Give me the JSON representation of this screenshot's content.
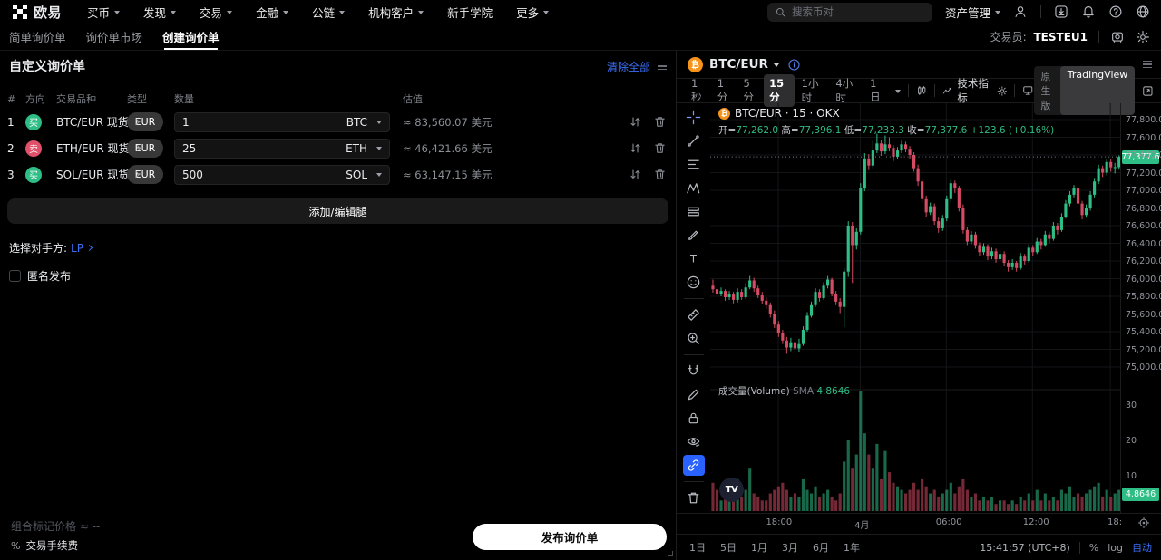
{
  "colors": {
    "accent": "#3a6ff7",
    "up": "#2ebd85",
    "down": "#d64b64",
    "badge_green": "#2ebd85",
    "btc_orange": "#f7931a"
  },
  "topnav": {
    "logo_text": "欧易",
    "menus": [
      {
        "label": "买币",
        "caret": true
      },
      {
        "label": "发现",
        "caret": true
      },
      {
        "label": "交易",
        "caret": true
      },
      {
        "label": "金融",
        "caret": true
      },
      {
        "label": "公链",
        "caret": true
      },
      {
        "label": "机构客户",
        "caret": true
      },
      {
        "label": "新手学院",
        "caret": false
      },
      {
        "label": "更多",
        "caret": true
      }
    ],
    "search_placeholder": "搜索币对",
    "assets_label": "资产管理"
  },
  "subnav": {
    "tabs": [
      {
        "label": "简单询价单",
        "active": false
      },
      {
        "label": "询价单市场",
        "active": false
      },
      {
        "label": "创建询价单",
        "active": true
      }
    ],
    "trader_label": "交易员:",
    "trader_value": "TESTEU1"
  },
  "rfq": {
    "title": "自定义询价单",
    "clear_all": "清除全部",
    "columns": {
      "index": "#",
      "direction": "方向",
      "instrument": "交易品种",
      "type": "类型",
      "amount": "数量",
      "value": "估值"
    },
    "rows": [
      {
        "index": "1",
        "side": "买",
        "side_key": "buy",
        "pair": "BTC/EUR 现货",
        "type": "EUR",
        "amount": "1",
        "ccy": "BTC",
        "value": "≈ 83,560.07 美元"
      },
      {
        "index": "2",
        "side": "卖",
        "side_key": "sell",
        "pair": "ETH/EUR 现货",
        "type": "EUR",
        "amount": "25",
        "ccy": "ETH",
        "value": "≈ 46,421.66 美元"
      },
      {
        "index": "3",
        "side": "买",
        "side_key": "buy",
        "pair": "SOL/EUR 现货",
        "type": "EUR",
        "amount": "500",
        "ccy": "SOL",
        "value": "≈ 63,147.15 美元"
      }
    ],
    "add_edit_legs": "添加/编辑腿",
    "counterparty_label": "选择对手方:",
    "counterparty_value": "LP",
    "anonymous_label": "匿名发布",
    "mark_price_label": "组合标记价格",
    "mark_price_value": "≈ --",
    "fee_pct_symbol": "%",
    "fee_label": "交易手续费",
    "publish_button": "发布询价单"
  },
  "chart": {
    "symbol": "BTC/EUR",
    "timeframes": [
      "1秒",
      "1分",
      "5分",
      "15分",
      "1小时",
      "4小时",
      "1日"
    ],
    "active_timeframe": "15分",
    "indicators_label": "技术指标",
    "native_label": "原生版",
    "tv_label": "TradingView",
    "legend_title": "BTC/EUR · 15 · OKX",
    "ohlc": {
      "open_label": "开=",
      "open": "77,262.0",
      "high_label": "高=",
      "high": "77,396.1",
      "low_label": "低=",
      "low": "77,233.3",
      "close_label": "收=",
      "close": "77,377.6",
      "change": "+123.6 (+0.16%)"
    },
    "volume_legend": {
      "label": "成交量(Volume)",
      "sma_label": "SMA",
      "sma_value": "4.8646"
    },
    "last_price_badge": "77,377.6",
    "volume_badge": "4.8646",
    "tv_logo_text": "TV",
    "ranges": [
      "1日",
      "5日",
      "1月",
      "3月",
      "6月",
      "1年"
    ],
    "clock": "15:41:57 (UTC+8)",
    "percent_label": "%",
    "log_label": "log",
    "auto_label": "自动"
  },
  "chart_data": {
    "type": "candlestick",
    "symbol": "BTC/EUR",
    "interval": "15",
    "exchange": "OKX",
    "current": {
      "open": 77262.0,
      "high": 77396.1,
      "low": 77233.3,
      "close": 77377.6,
      "change": 123.6,
      "change_pct": 0.16
    },
    "price_axis": {
      "min": 75000,
      "max": 77800,
      "step": 200
    },
    "volume_axis": {
      "ticks": [
        10,
        20,
        30
      ]
    },
    "volume_sma": 4.8646,
    "last_price": 77377.6,
    "time_ticks": [
      {
        "label": "18:00",
        "pos": 0.166
      },
      {
        "label": "4月",
        "pos": 0.366
      },
      {
        "label": "06:00",
        "pos": 0.576
      },
      {
        "label": "12:00",
        "pos": 0.786
      },
      {
        "label": "18:",
        "pos": 0.976
      }
    ],
    "candles": [
      [
        75920,
        75990,
        75840,
        75880,
        8
      ],
      [
        75880,
        75910,
        75790,
        75830,
        6
      ],
      [
        75830,
        75900,
        75800,
        75860,
        3
      ],
      [
        75860,
        75880,
        75750,
        75790,
        4
      ],
      [
        75790,
        75860,
        75760,
        75820,
        3
      ],
      [
        75820,
        75850,
        75720,
        75760,
        3
      ],
      [
        75760,
        75890,
        75730,
        75850,
        9
      ],
      [
        75850,
        75880,
        75760,
        75790,
        4
      ],
      [
        75790,
        75950,
        75770,
        75900,
        6
      ],
      [
        75900,
        76030,
        75880,
        75980,
        12
      ],
      [
        75980,
        76010,
        75850,
        75890,
        5
      ],
      [
        75890,
        75920,
        75780,
        75810,
        4
      ],
      [
        75810,
        75850,
        75710,
        75750,
        3
      ],
      [
        75750,
        75790,
        75660,
        75700,
        3
      ],
      [
        75700,
        75730,
        75560,
        75600,
        5
      ],
      [
        75600,
        75640,
        75440,
        75480,
        6
      ],
      [
        75480,
        75520,
        75340,
        75380,
        7
      ],
      [
        75380,
        75420,
        75260,
        75300,
        8
      ],
      [
        75300,
        75340,
        75150,
        75220,
        6
      ],
      [
        75220,
        75330,
        75180,
        75280,
        4
      ],
      [
        75280,
        75310,
        75160,
        75210,
        5
      ],
      [
        75210,
        75320,
        75170,
        75260,
        4
      ],
      [
        75260,
        75460,
        75240,
        75420,
        9
      ],
      [
        75420,
        75620,
        75400,
        75580,
        6
      ],
      [
        75580,
        75740,
        75560,
        75700,
        5
      ],
      [
        75700,
        75890,
        75680,
        75850,
        7
      ],
      [
        75850,
        75880,
        75740,
        75780,
        4
      ],
      [
        75780,
        75960,
        75760,
        75920,
        5
      ],
      [
        75920,
        76030,
        75890,
        75990,
        6
      ],
      [
        75990,
        76010,
        75800,
        75830,
        4
      ],
      [
        75830,
        75860,
        75700,
        75740,
        3
      ],
      [
        75740,
        75780,
        75610,
        75680,
        5
      ],
      [
        75680,
        76120,
        75450,
        76080,
        14
      ],
      [
        76080,
        76650,
        76020,
        76600,
        20
      ],
      [
        76600,
        76640,
        75950,
        76380,
        12
      ],
      [
        76380,
        76570,
        76330,
        76530,
        16
      ],
      [
        76530,
        77080,
        76500,
        77020,
        34
      ],
      [
        77020,
        77420,
        76990,
        77360,
        22
      ],
      [
        77360,
        77410,
        77230,
        77280,
        16
      ],
      [
        77280,
        77560,
        77250,
        77450,
        12
      ],
      [
        77450,
        77640,
        77420,
        77530,
        19
      ],
      [
        77530,
        77570,
        77390,
        77440,
        9
      ],
      [
        77440,
        77620,
        77410,
        77520,
        17
      ],
      [
        77520,
        77600,
        77440,
        77480,
        11
      ],
      [
        77480,
        77510,
        77330,
        77380,
        8
      ],
      [
        77380,
        77490,
        77350,
        77450,
        7
      ],
      [
        77450,
        77560,
        77420,
        77520,
        6
      ],
      [
        77520,
        77550,
        77430,
        77470,
        5
      ],
      [
        77470,
        77500,
        77350,
        77400,
        6
      ],
      [
        77400,
        77430,
        77210,
        77250,
        8
      ],
      [
        77250,
        77290,
        77050,
        77100,
        6
      ],
      [
        77100,
        77140,
        76860,
        76900,
        9
      ],
      [
        76900,
        76940,
        76700,
        76750,
        7
      ],
      [
        76750,
        76860,
        76720,
        76820,
        5
      ],
      [
        76820,
        76850,
        76610,
        76650,
        6
      ],
      [
        76650,
        76690,
        76520,
        76570,
        4
      ],
      [
        76570,
        76720,
        76540,
        76680,
        5
      ],
      [
        76680,
        76940,
        76650,
        76900,
        6
      ],
      [
        76900,
        77120,
        76870,
        77080,
        8
      ],
      [
        77080,
        77110,
        76970,
        77020,
        5
      ],
      [
        77020,
        77050,
        76760,
        76800,
        7
      ],
      [
        76800,
        76840,
        76510,
        76550,
        9
      ],
      [
        76550,
        76590,
        76380,
        76420,
        6
      ],
      [
        76420,
        76540,
        76390,
        76500,
        4
      ],
      [
        76500,
        76530,
        76340,
        76380,
        5
      ],
      [
        76380,
        76410,
        76260,
        76300,
        3
      ],
      [
        76300,
        76400,
        76270,
        76360,
        4
      ],
      [
        76360,
        76390,
        76210,
        76250,
        3
      ],
      [
        76250,
        76350,
        76220,
        76310,
        4
      ],
      [
        76310,
        76340,
        76180,
        76220,
        2
      ],
      [
        76220,
        76320,
        76190,
        76280,
        3
      ],
      [
        76280,
        76310,
        76140,
        76180,
        3
      ],
      [
        76180,
        76210,
        76080,
        76130,
        2
      ],
      [
        76130,
        76220,
        76100,
        76180,
        3
      ],
      [
        76180,
        76200,
        76080,
        76120,
        2
      ],
      [
        76120,
        76290,
        76100,
        76250,
        4
      ],
      [
        76250,
        76280,
        76160,
        76200,
        3
      ],
      [
        76200,
        76390,
        76180,
        76350,
        5
      ],
      [
        76350,
        76380,
        76260,
        76300,
        3
      ],
      [
        76300,
        76460,
        76280,
        76420,
        6
      ],
      [
        76420,
        76450,
        76330,
        76380,
        3
      ],
      [
        76380,
        76540,
        76360,
        76500,
        5
      ],
      [
        76500,
        76530,
        76400,
        76450,
        3
      ],
      [
        76450,
        76640,
        76430,
        76600,
        4
      ],
      [
        76600,
        76630,
        76500,
        76550,
        3
      ],
      [
        76550,
        76740,
        76530,
        76700,
        6
      ],
      [
        76700,
        76890,
        76680,
        76850,
        5
      ],
      [
        76850,
        76990,
        76820,
        76950,
        7
      ],
      [
        76950,
        77060,
        76920,
        77020,
        4
      ],
      [
        77020,
        77050,
        76800,
        76850,
        5
      ],
      [
        76850,
        76880,
        76670,
        76720,
        4
      ],
      [
        76720,
        76840,
        76690,
        76800,
        5
      ],
      [
        76800,
        76990,
        76770,
        76950,
        6
      ],
      [
        76950,
        77140,
        76920,
        77100,
        7
      ],
      [
        77100,
        77290,
        77070,
        77250,
        8
      ],
      [
        77250,
        77280,
        77150,
        77200,
        4
      ],
      [
        77200,
        77360,
        77170,
        77320,
        6
      ],
      [
        77320,
        77350,
        77210,
        77260,
        4
      ],
      [
        77260,
        77310,
        77190,
        77262,
        5
      ],
      [
        77262,
        77396.1,
        77233.3,
        77377.6,
        6
      ]
    ]
  }
}
